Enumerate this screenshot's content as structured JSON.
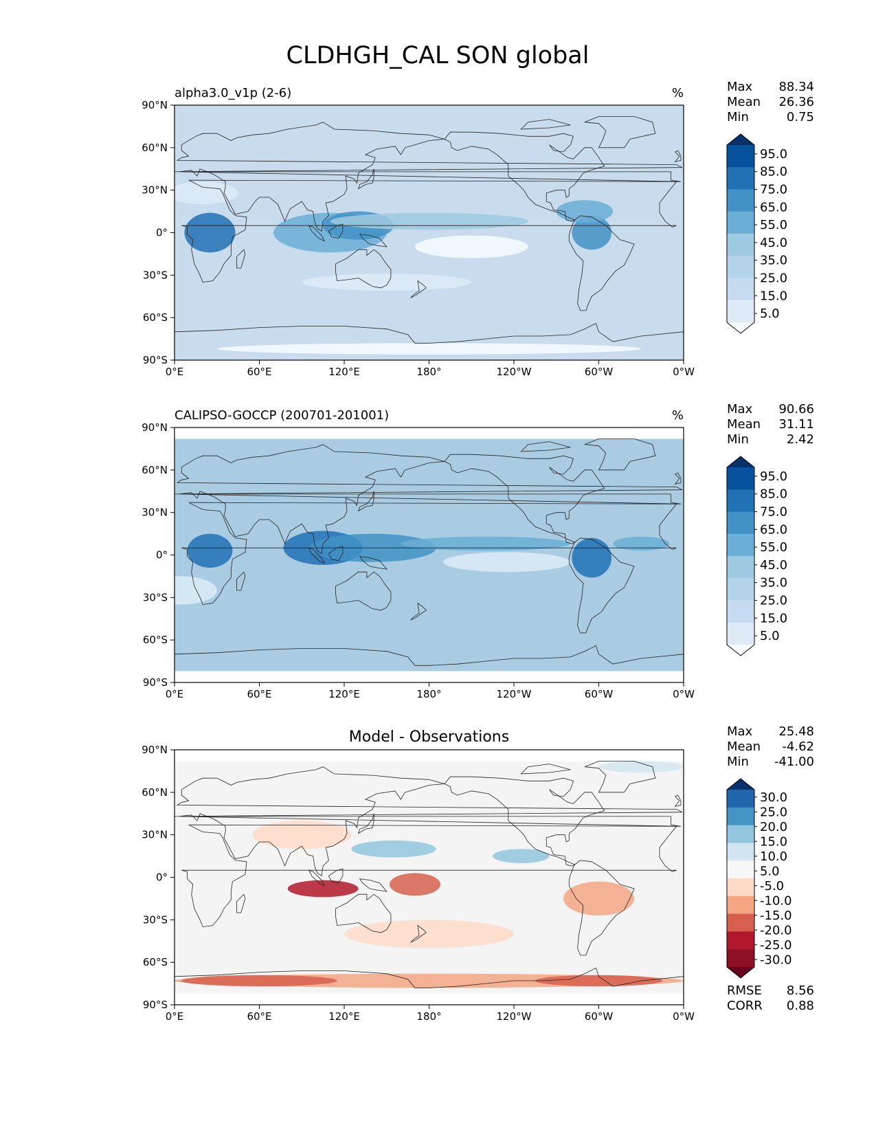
{
  "chart_data": {
    "type": "heatmap",
    "title": "CLDHGH_CAL SON global",
    "x_ticks": [
      "0°E",
      "60°E",
      "120°E",
      "180°",
      "120°W",
      "60°W",
      "0°W"
    ],
    "y_ticks": [
      "90°N",
      "60°N",
      "30°N",
      "0°",
      "30°S",
      "60°S",
      "90°S"
    ],
    "panels": [
      {
        "id": "model",
        "left_title": "alpha3.0_v1p (2-6)",
        "center_title": "",
        "units": "%",
        "stats": [
          {
            "label": "Max",
            "value": "88.34"
          },
          {
            "label": "Mean",
            "value": "26.36"
          },
          {
            "label": "Min",
            "value": "0.75"
          }
        ],
        "colorbar": {
          "labels": [
            "95.0",
            "85.0",
            "75.0",
            "65.0",
            "55.0",
            "45.0",
            "35.0",
            "25.0",
            "15.0",
            "5.0"
          ],
          "colors": [
            "#08306b",
            "#08519c",
            "#2171b5",
            "#4292c6",
            "#6baed6",
            "#9ecae1",
            "#b3d3e8",
            "#c6dbef",
            "#deebf7",
            "#f7fbff"
          ],
          "extend": "both"
        },
        "background": "#c8dcee",
        "blobs": [
          {
            "lon": 25,
            "lat": 0,
            "rlon": 18,
            "rlat": 14,
            "color": "#2171b5"
          },
          {
            "lon": 110,
            "lat": 0,
            "rlon": 40,
            "rlat": 14,
            "color": "#6baed6"
          },
          {
            "lon": 130,
            "lat": 5,
            "rlon": 25,
            "rlat": 10,
            "color": "#4292c6"
          },
          {
            "lon": 180,
            "lat": 8,
            "rlon": 70,
            "rlat": 6,
            "color": "#9ecae1"
          },
          {
            "lon": 210,
            "lat": -10,
            "rlon": 40,
            "rlat": 8,
            "color": "#f7fbff"
          },
          {
            "lon": 295,
            "lat": 0,
            "rlon": 14,
            "rlat": 12,
            "color": "#4292c6"
          },
          {
            "lon": 290,
            "lat": 15,
            "rlon": 20,
            "rlat": 8,
            "color": "#6baed6"
          },
          {
            "lon": 150,
            "lat": -35,
            "rlon": 60,
            "rlat": 6,
            "color": "#deebf7"
          },
          {
            "lon": 180,
            "lat": -82,
            "rlon": 150,
            "rlat": 4,
            "color": "#f7fbff"
          },
          {
            "lon": 20,
            "lat": 28,
            "rlon": 25,
            "rlat": 8,
            "color": "#deebf7"
          }
        ]
      },
      {
        "id": "obs",
        "left_title": "CALIPSO-GOCCP (200701-201001)",
        "center_title": "",
        "units": "%",
        "stats": [
          {
            "label": "Max",
            "value": "90.66"
          },
          {
            "label": "Mean",
            "value": "31.11"
          },
          {
            "label": "Min",
            "value": "2.42"
          }
        ],
        "colorbar": {
          "labels": [
            "95.0",
            "85.0",
            "75.0",
            "65.0",
            "55.0",
            "45.0",
            "35.0",
            "25.0",
            "15.0",
            "5.0"
          ],
          "colors": [
            "#08306b",
            "#08519c",
            "#2171b5",
            "#4292c6",
            "#6baed6",
            "#9ecae1",
            "#b3d3e8",
            "#c6dbef",
            "#deebf7",
            "#f7fbff"
          ],
          "extend": "both"
        },
        "background": "#a9cce3",
        "blobs": [
          {
            "lon": 25,
            "lat": 3,
            "rlon": 16,
            "rlat": 12,
            "color": "#2171b5"
          },
          {
            "lon": 105,
            "lat": 5,
            "rlon": 28,
            "rlat": 12,
            "color": "#2171b5"
          },
          {
            "lon": 140,
            "lat": 5,
            "rlon": 45,
            "rlat": 10,
            "color": "#4292c6"
          },
          {
            "lon": 220,
            "lat": 8,
            "rlon": 60,
            "rlat": 5,
            "color": "#6baed6"
          },
          {
            "lon": 235,
            "lat": -5,
            "rlon": 45,
            "rlat": 7,
            "color": "#deebf7"
          },
          {
            "lon": 295,
            "lat": -2,
            "rlon": 14,
            "rlat": 14,
            "color": "#2171b5"
          },
          {
            "lon": 330,
            "lat": 8,
            "rlon": 20,
            "rlat": 5,
            "color": "#6baed6"
          },
          {
            "lon": 5,
            "lat": -25,
            "rlon": 25,
            "rlat": 10,
            "color": "#deebf7"
          }
        ]
      },
      {
        "id": "diff",
        "left_title": "",
        "center_title": "Model - Observations",
        "units": "",
        "stats": [
          {
            "label": "Max",
            "value": "25.48"
          },
          {
            "label": "Mean",
            "value": "-4.62"
          },
          {
            "label": "Min",
            "value": "-41.00"
          }
        ],
        "bottom_stats": [
          {
            "label": "RMSE",
            "value": "8.56"
          },
          {
            "label": "CORR",
            "value": "0.88"
          }
        ],
        "colorbar": {
          "labels": [
            "30.0",
            "25.0",
            "20.0",
            "15.0",
            "10.0",
            "5.0",
            "-5.0",
            "-10.0",
            "-15.0",
            "-20.0",
            "-25.0",
            "-30.0"
          ],
          "colors": [
            "#08306b",
            "#2166ac",
            "#4393c3",
            "#92c5de",
            "#d1e5f0",
            "#f7f7f7",
            "#fddbc7",
            "#f4a582",
            "#d6604d",
            "#b2182b",
            "#8c1026",
            "#67001f"
          ],
          "extend": "both"
        },
        "background": "#f4f4f4",
        "blobs": [
          {
            "lon": 105,
            "lat": -8,
            "rlon": 25,
            "rlat": 6,
            "color": "#b2182b"
          },
          {
            "lon": 170,
            "lat": -5,
            "rlon": 18,
            "rlat": 8,
            "color": "#d6604d"
          },
          {
            "lon": 300,
            "lat": -15,
            "rlon": 25,
            "rlat": 12,
            "color": "#f4a582"
          },
          {
            "lon": 180,
            "lat": -73,
            "rlon": 180,
            "rlat": 5,
            "color": "#f4a582"
          },
          {
            "lon": 60,
            "lat": -73,
            "rlon": 55,
            "rlat": 4,
            "color": "#d6604d"
          },
          {
            "lon": 300,
            "lat": -73,
            "rlon": 45,
            "rlat": 4,
            "color": "#d6604d"
          },
          {
            "lon": 155,
            "lat": 20,
            "rlon": 30,
            "rlat": 6,
            "color": "#92c5de"
          },
          {
            "lon": 245,
            "lat": 15,
            "rlon": 20,
            "rlat": 5,
            "color": "#92c5de"
          },
          {
            "lon": 90,
            "lat": 30,
            "rlon": 35,
            "rlat": 10,
            "color": "#fddbc7"
          },
          {
            "lon": 180,
            "lat": -40,
            "rlon": 60,
            "rlat": 10,
            "color": "#fddbc7"
          },
          {
            "lon": 330,
            "lat": 78,
            "rlon": 30,
            "rlat": 4,
            "color": "#d1e5f0"
          }
        ]
      }
    ]
  }
}
